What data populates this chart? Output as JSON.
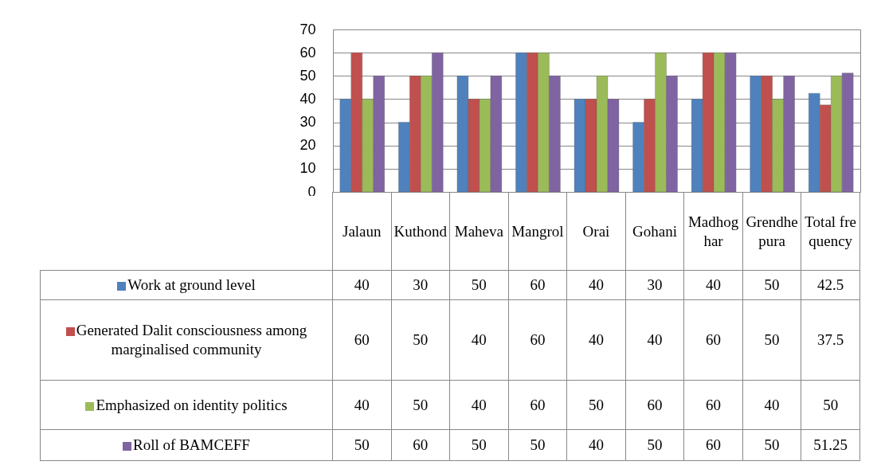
{
  "chart_data": {
    "type": "bar",
    "categories": [
      "Jalaun",
      "Kuthond",
      "Maheva",
      "Mangrol",
      "Orai",
      "Gohani",
      "Madhoghar",
      "Grendhepura",
      "Total frequency"
    ],
    "series": [
      {
        "name": "Work at ground level",
        "color": "#4f81bd",
        "values": [
          40,
          30,
          50,
          60,
          40,
          30,
          40,
          50,
          42.5
        ]
      },
      {
        "name": "Generated Dalit consciousness among marginalised community",
        "color": "#c0504d",
        "values": [
          60,
          50,
          40,
          60,
          40,
          40,
          60,
          50,
          37.5
        ]
      },
      {
        "name": "Emphasized on identity politics",
        "color": "#9bbb59",
        "values": [
          40,
          50,
          40,
          60,
          50,
          60,
          60,
          40,
          50
        ]
      },
      {
        "name": "Roll of BAMCEFF",
        "color": "#8064a2",
        "values": [
          50,
          60,
          50,
          50,
          40,
          50,
          60,
          50,
          51.25
        ]
      }
    ],
    "ylim": [
      0,
      70
    ],
    "yticks": [
      0,
      10,
      20,
      30,
      40,
      50,
      60,
      70
    ],
    "grid": "y",
    "legend": "bottom",
    "data_labels": true
  }
}
